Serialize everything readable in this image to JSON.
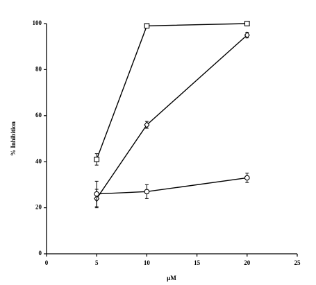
{
  "chart_data": {
    "type": "line",
    "x_label": "µM",
    "y_label": "% Inhibition",
    "xlim": [
      0,
      25
    ],
    "xticks": [
      0,
      5,
      10,
      15,
      20,
      25
    ],
    "ylim": [
      0,
      100
    ],
    "yticks": [
      0,
      20,
      40,
      60,
      80,
      100
    ],
    "grid": false,
    "series": [
      {
        "marker": "square",
        "color": "#000000",
        "x": [
          5,
          10,
          20
        ],
        "values": [
          41,
          99,
          100
        ],
        "errors": [
          2.5,
          0.8,
          0.8
        ]
      },
      {
        "marker": "diamond",
        "color": "#000000",
        "x": [
          5,
          10,
          20
        ],
        "values": [
          24,
          56,
          95
        ],
        "errors": [
          4,
          1.5,
          1.2
        ]
      },
      {
        "marker": "circle",
        "color": "#000000",
        "x": [
          5,
          10,
          20
        ],
        "values": [
          26,
          27,
          33
        ],
        "errors": [
          5.5,
          3,
          2
        ]
      }
    ]
  }
}
